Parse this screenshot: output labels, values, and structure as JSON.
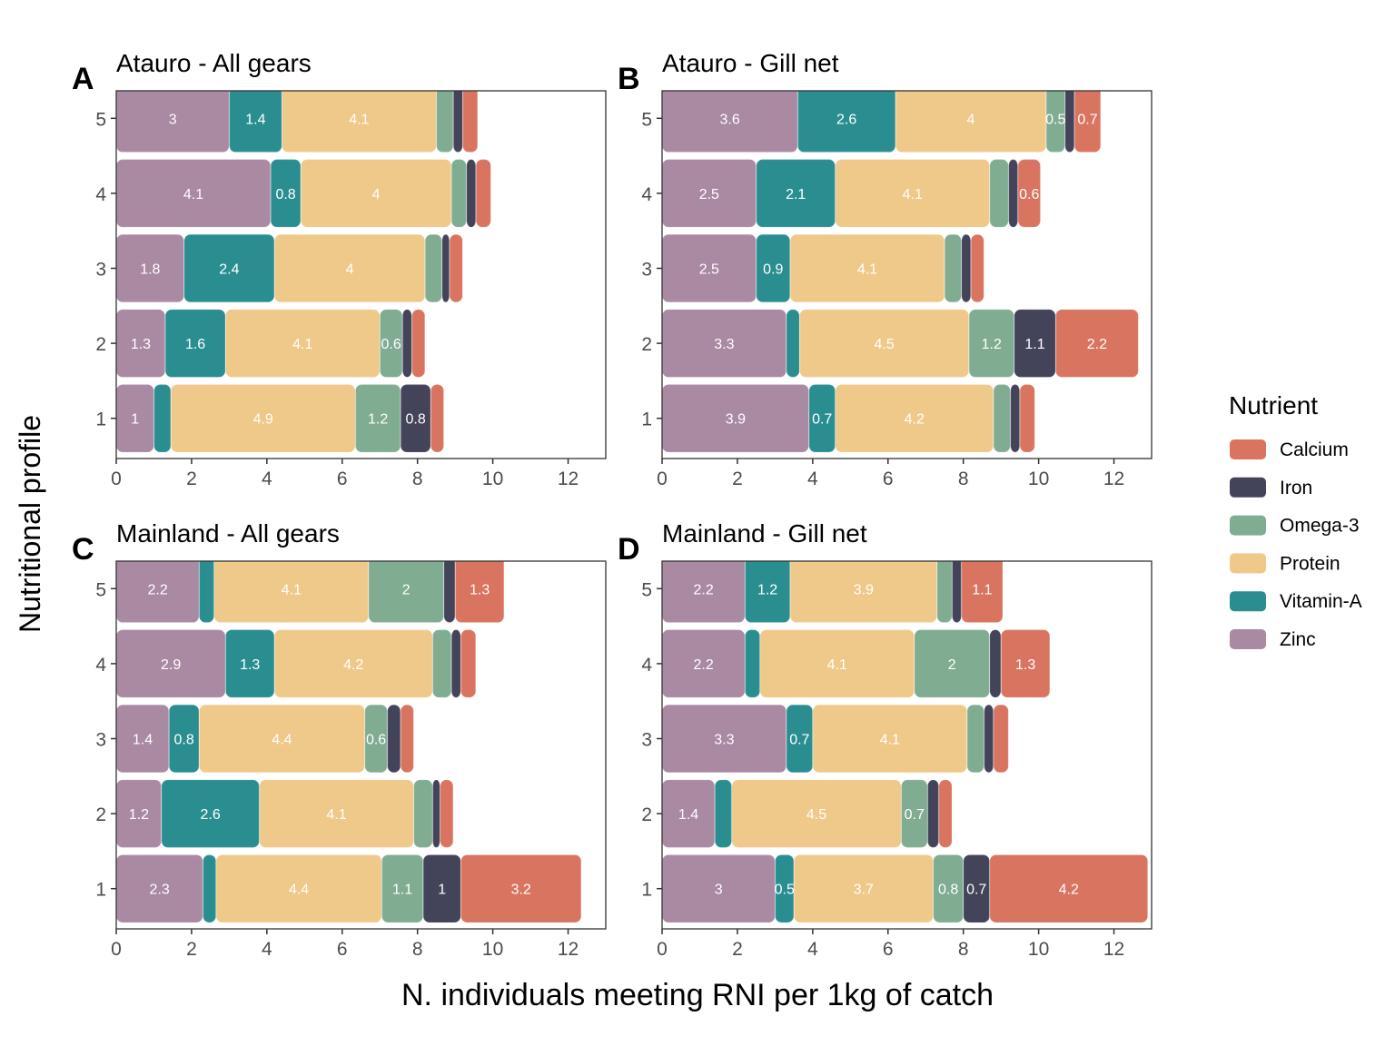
{
  "figure": {
    "ylabel": "Nutritional profile",
    "xlabel": "N. individuals meeting RNI per 1kg of catch",
    "legend": {
      "title": "Nutrient",
      "placement": "right",
      "items": [
        {
          "name": "Calcium",
          "color": "#D97461"
        },
        {
          "name": "Iron",
          "color": "#434359"
        },
        {
          "name": "Omega-3",
          "color": "#80AC92"
        },
        {
          "name": "Protein",
          "color": "#EFC98A"
        },
        {
          "name": "Vitamin-A",
          "color": "#2A8E91"
        },
        {
          "name": "Zinc",
          "color": "#AA89A3"
        }
      ]
    }
  },
  "chart_data": [
    {
      "type": "bar",
      "orientation": "horizontal",
      "stacked": true,
      "panel_letter": "A",
      "title": "Atauro - All gears",
      "categories": [
        "1",
        "2",
        "3",
        "4",
        "5"
      ],
      "xlim": [
        0,
        13
      ],
      "xticks": [
        "0",
        "2",
        "4",
        "6",
        "8",
        "10",
        "12"
      ],
      "series": [
        {
          "name": "Zinc",
          "values": [
            1.0,
            1.3,
            1.8,
            4.1,
            3.0
          ],
          "labels": [
            "1",
            "1.3",
            "1.8",
            "4.1",
            "3"
          ]
        },
        {
          "name": "Vitamin-A",
          "values": [
            0.45,
            1.6,
            2.4,
            0.8,
            1.4
          ],
          "labels": [
            "",
            "1.6",
            "2.4",
            "0.8",
            "1.4"
          ]
        },
        {
          "name": "Protein",
          "values": [
            4.9,
            4.1,
            4.0,
            4.0,
            4.1
          ],
          "labels": [
            "4.9",
            "4.1",
            "4",
            "4",
            "4.1"
          ]
        },
        {
          "name": "Omega-3",
          "values": [
            1.2,
            0.6,
            0.45,
            0.4,
            0.45
          ],
          "labels": [
            "1.2",
            "0.6",
            "",
            "",
            ""
          ]
        },
        {
          "name": "Iron",
          "values": [
            0.8,
            0.25,
            0.2,
            0.25,
            0.25
          ],
          "labels": [
            "0.8",
            "",
            "",
            "",
            ""
          ]
        },
        {
          "name": "Calcium",
          "values": [
            0.35,
            0.35,
            0.35,
            0.4,
            0.4
          ],
          "labels": [
            "",
            "",
            "",
            "",
            ""
          ]
        }
      ]
    },
    {
      "type": "bar",
      "orientation": "horizontal",
      "stacked": true,
      "panel_letter": "B",
      "title": "Atauro - Gill net",
      "categories": [
        "1",
        "2",
        "3",
        "4",
        "5"
      ],
      "xlim": [
        0,
        13
      ],
      "xticks": [
        "0",
        "2",
        "4",
        "6",
        "8",
        "10",
        "12"
      ],
      "series": [
        {
          "name": "Zinc",
          "values": [
            3.9,
            3.3,
            2.5,
            2.5,
            3.6
          ],
          "labels": [
            "3.9",
            "3.3",
            "2.5",
            "2.5",
            "3.6"
          ]
        },
        {
          "name": "Vitamin-A",
          "values": [
            0.7,
            0.35,
            0.9,
            2.1,
            2.6
          ],
          "labels": [
            "0.7",
            "",
            "0.9",
            "2.1",
            "2.6"
          ]
        },
        {
          "name": "Protein",
          "values": [
            4.2,
            4.5,
            4.1,
            4.1,
            4.0
          ],
          "labels": [
            "4.2",
            "4.5",
            "4.1",
            "4.1",
            "4"
          ]
        },
        {
          "name": "Omega-3",
          "values": [
            0.45,
            1.2,
            0.45,
            0.5,
            0.5
          ],
          "labels": [
            "",
            "1.2",
            "",
            "",
            "0.5"
          ]
        },
        {
          "name": "Iron",
          "values": [
            0.25,
            1.1,
            0.25,
            0.25,
            0.25
          ],
          "labels": [
            "",
            "1.1",
            "",
            "",
            ""
          ]
        },
        {
          "name": "Calcium",
          "values": [
            0.4,
            2.2,
            0.35,
            0.6,
            0.7
          ],
          "labels": [
            "",
            "2.2",
            "",
            "0.6",
            "0.7"
          ]
        }
      ]
    },
    {
      "type": "bar",
      "orientation": "horizontal",
      "stacked": true,
      "panel_letter": "C",
      "title": "Mainland - All gears",
      "categories": [
        "1",
        "2",
        "3",
        "4",
        "5"
      ],
      "xlim": [
        0,
        13
      ],
      "xticks": [
        "0",
        "2",
        "4",
        "6",
        "8",
        "10",
        "12"
      ],
      "series": [
        {
          "name": "Zinc",
          "values": [
            2.3,
            1.2,
            1.4,
            2.9,
            2.2
          ],
          "labels": [
            "2.3",
            "1.2",
            "1.4",
            "2.9",
            "2.2"
          ]
        },
        {
          "name": "Vitamin-A",
          "values": [
            0.35,
            2.6,
            0.8,
            1.3,
            0.4
          ],
          "labels": [
            "",
            "2.6",
            "0.8",
            "1.3",
            ""
          ]
        },
        {
          "name": "Protein",
          "values": [
            4.4,
            4.1,
            4.4,
            4.2,
            4.1
          ],
          "labels": [
            "4.4",
            "4.1",
            "4.4",
            "4.2",
            "4.1"
          ]
        },
        {
          "name": "Omega-3",
          "values": [
            1.1,
            0.5,
            0.6,
            0.5,
            2.0
          ],
          "labels": [
            "1.1",
            "",
            "0.6",
            "",
            "2"
          ]
        },
        {
          "name": "Iron",
          "values": [
            1.0,
            0.2,
            0.35,
            0.25,
            0.3
          ],
          "labels": [
            "1",
            "",
            "",
            "",
            ""
          ]
        },
        {
          "name": "Calcium",
          "values": [
            3.2,
            0.35,
            0.35,
            0.4,
            1.3
          ],
          "labels": [
            "3.2",
            "",
            "",
            "",
            "1.3"
          ]
        }
      ]
    },
    {
      "type": "bar",
      "orientation": "horizontal",
      "stacked": true,
      "panel_letter": "D",
      "title": "Mainland - Gill net",
      "categories": [
        "1",
        "2",
        "3",
        "4",
        "5"
      ],
      "xlim": [
        0,
        13
      ],
      "xticks": [
        "0",
        "2",
        "4",
        "6",
        "8",
        "10",
        "12"
      ],
      "series": [
        {
          "name": "Zinc",
          "values": [
            3.0,
            1.4,
            3.3,
            2.2,
            2.2
          ],
          "labels": [
            "3",
            "1.4",
            "3.3",
            "2.2",
            "2.2"
          ]
        },
        {
          "name": "Vitamin-A",
          "values": [
            0.5,
            0.45,
            0.7,
            0.4,
            1.2
          ],
          "labels": [
            "0.5",
            "",
            "0.7",
            "",
            "1.2"
          ]
        },
        {
          "name": "Protein",
          "values": [
            3.7,
            4.5,
            4.1,
            4.1,
            3.9
          ],
          "labels": [
            "3.7",
            "4.5",
            "4.1",
            "4.1",
            "3.9"
          ]
        },
        {
          "name": "Omega-3",
          "values": [
            0.8,
            0.7,
            0.45,
            2.0,
            0.4
          ],
          "labels": [
            "0.8",
            "0.7",
            "",
            "2",
            ""
          ]
        },
        {
          "name": "Iron",
          "values": [
            0.7,
            0.3,
            0.25,
            0.3,
            0.25
          ],
          "labels": [
            "0.7",
            "",
            "",
            "",
            ""
          ]
        },
        {
          "name": "Calcium",
          "values": [
            4.2,
            0.35,
            0.4,
            1.3,
            1.1
          ],
          "labels": [
            "4.2",
            "",
            "",
            "1.3",
            "1.1"
          ]
        }
      ]
    }
  ]
}
